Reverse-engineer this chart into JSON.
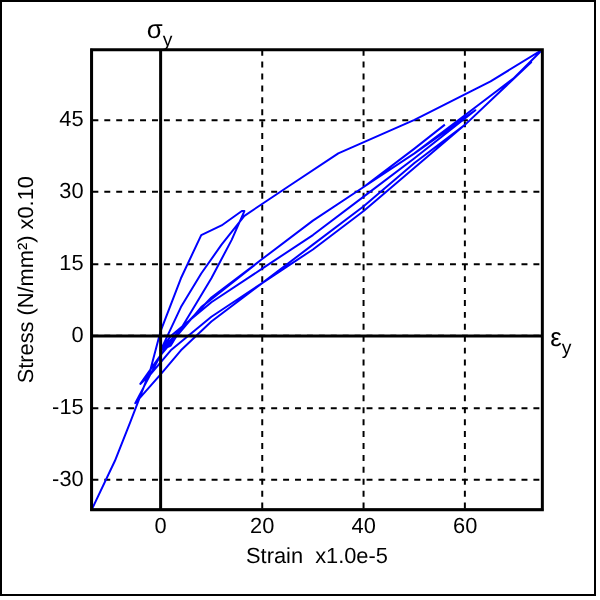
{
  "chart_data": {
    "type": "line",
    "xlabel": "Strain  x1.0e-5",
    "ylabel": "Stress (N/mm²) x0.10",
    "xlim": [
      -13.6,
      75.2
    ],
    "ylim": [
      -36.2,
      59.6
    ],
    "xticks": [
      0,
      20,
      40,
      60
    ],
    "yticks": [
      -30,
      -15,
      0,
      15,
      30,
      45
    ],
    "grid": true,
    "annotations": [
      "σ$_{y}$",
      "ε$_{y}$"
    ],
    "x": [
      -13.5,
      -9,
      -6,
      -2,
      0,
      4,
      8,
      12,
      16,
      16.5,
      14,
      10,
      6,
      2,
      0,
      4,
      8,
      12,
      16.5,
      25,
      35,
      50,
      65,
      75.2,
      68,
      60,
      50,
      40,
      30,
      20,
      10,
      4,
      0,
      -5,
      0,
      8,
      20,
      30,
      40,
      50,
      60,
      70,
      73,
      60,
      50,
      40,
      30,
      20,
      10,
      2,
      -2,
      -4,
      2,
      10,
      20,
      30,
      40,
      50,
      58,
      62,
      50,
      40,
      30,
      20,
      10,
      2,
      0,
      10,
      20,
      30,
      40,
      50,
      56
    ],
    "series": [
      {
        "color": "#0000ff",
        "values": [
          -36,
          -26,
          -18,
          -7,
          1,
          12,
          21,
          23,
          26,
          26,
          20,
          12,
          5,
          -2,
          -3,
          6,
          13,
          19,
          25,
          31,
          38,
          45,
          53,
          59.6,
          52,
          44,
          35,
          26,
          18,
          11,
          3,
          -3,
          -8,
          -14,
          -4,
          6,
          16,
          24,
          31,
          38,
          46,
          54,
          57,
          44,
          36,
          27,
          19,
          11,
          4,
          -3,
          -8,
          -10,
          -1,
          8,
          16,
          24,
          31,
          38,
          44,
          47,
          37,
          29,
          21,
          14,
          7,
          0,
          -3,
          8,
          16,
          24,
          31,
          39,
          44
        ]
      }
    ]
  }
}
